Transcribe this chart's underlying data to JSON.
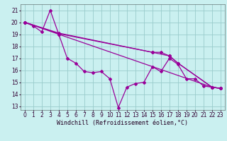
{
  "bg_color": "#caf0f0",
  "grid_color": "#99cccc",
  "line_color": "#990099",
  "xlabel": "Windchill (Refroidissement éolien,°C)",
  "xlabel_fontsize": 6,
  "tick_fontsize": 5.5,
  "xlim": [
    -0.5,
    23.5
  ],
  "ylim": [
    12.7,
    21.5
  ],
  "xticks": [
    0,
    1,
    2,
    3,
    4,
    5,
    6,
    7,
    8,
    9,
    10,
    11,
    12,
    13,
    14,
    15,
    16,
    17,
    18,
    19,
    20,
    21,
    22,
    23
  ],
  "yticks": [
    13,
    14,
    15,
    16,
    17,
    18,
    19,
    20,
    21
  ],
  "series_wavy": [
    [
      0,
      20.0
    ],
    [
      1,
      19.7
    ],
    [
      2,
      19.2
    ],
    [
      3,
      21.0
    ],
    [
      4,
      19.0
    ],
    [
      5,
      17.0
    ],
    [
      6,
      16.6
    ],
    [
      7,
      15.9
    ],
    [
      8,
      15.8
    ],
    [
      9,
      15.9
    ],
    [
      10,
      15.3
    ],
    [
      11,
      12.9
    ],
    [
      12,
      14.6
    ],
    [
      13,
      14.9
    ],
    [
      14,
      15.0
    ],
    [
      15,
      16.3
    ],
    [
      16,
      15.9
    ],
    [
      17,
      17.0
    ],
    [
      18,
      16.5
    ],
    [
      19,
      15.3
    ],
    [
      20,
      15.3
    ],
    [
      21,
      14.7
    ],
    [
      22,
      14.6
    ],
    [
      23,
      14.5
    ]
  ],
  "series_diag1": [
    [
      0,
      20.0
    ],
    [
      4,
      19.1
    ],
    [
      15,
      17.5
    ],
    [
      16,
      17.5
    ],
    [
      17,
      17.2
    ],
    [
      18,
      16.6
    ],
    [
      22,
      14.6
    ],
    [
      23,
      14.5
    ]
  ],
  "series_diag2": [
    [
      0,
      20.0
    ],
    [
      4,
      19.05
    ],
    [
      15,
      17.5
    ],
    [
      17,
      17.2
    ],
    [
      18,
      16.6
    ],
    [
      22,
      14.6
    ],
    [
      23,
      14.5
    ]
  ],
  "series_diag3": [
    [
      0,
      20.0
    ],
    [
      4,
      19.0
    ],
    [
      22,
      14.6
    ],
    [
      23,
      14.5
    ]
  ]
}
